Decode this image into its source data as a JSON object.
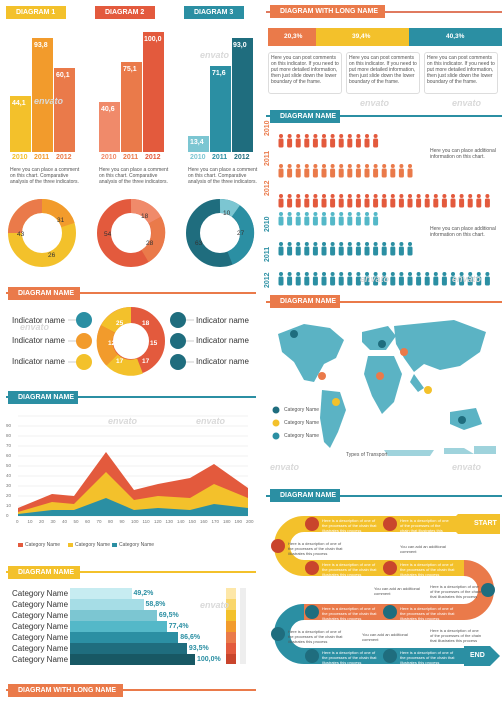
{
  "colors": {
    "orange": "#ea7a4a",
    "red": "#e35a3d",
    "yellow": "#f3c12b",
    "teal": "#2b8fa3",
    "darkteal": "#1f6d7e",
    "lightteal": "#54b8c8",
    "amber": "#f29b2c"
  },
  "top_charts": [
    {
      "title": "DIAGRAM 1",
      "values": [
        "44,1",
        "93,8",
        "60,1"
      ],
      "years": [
        "2010",
        "2011",
        "2012"
      ],
      "donut": [
        "43",
        "31",
        "26"
      ],
      "caption": "Here you can place a comment on this chart. Comparative analysis of the three indicators."
    },
    {
      "title": "DIAGRAM 2",
      "values": [
        "40,6",
        "75,1",
        "100,0"
      ],
      "years": [
        "2010",
        "2011",
        "2012"
      ],
      "donut": [
        "54",
        "18",
        "28"
      ],
      "caption": "Here you can place a comment on this chart. Comparative analysis of the three indicators."
    },
    {
      "title": "DIAGRAM 3",
      "values": [
        "13,4",
        "71,6",
        "93,0"
      ],
      "years": [
        "2010",
        "2011",
        "2012"
      ],
      "donut": [
        "63",
        "10",
        "27"
      ],
      "caption": "Here you can place a comment on this chart. Comparative analysis of the three indicators."
    }
  ],
  "long_diagram": {
    "title": "DIAGRAM WITH LONG NAME",
    "percents": [
      "20,3%",
      "39,4%",
      "40,3%"
    ],
    "comment": "Here you can post comments on this indicator. If you need to put more detailed information, then just slide down the lower boundary of the frame."
  },
  "people_diagram": {
    "title": "DIAGRAM NAME",
    "years": [
      "2010",
      "2011",
      "2012"
    ],
    "comment": "Here you can place additional information on this chart."
  },
  "indicator_diagram": {
    "title": "DIAGRAM NAME",
    "label": "Indicator name",
    "center_values": [
      "25",
      "18",
      "15",
      "17",
      "17",
      "12"
    ]
  },
  "world_map": {
    "title": "DIAGRAM NAME",
    "legend": [
      "Category Name",
      "Category Name",
      "Category Name"
    ],
    "transport": "Types of Transport"
  },
  "area_chart": {
    "title": "DIAGRAM NAME",
    "legend": [
      "Category Name",
      "Category Name",
      "Category Name"
    ],
    "yticks": [
      "0",
      "10",
      "20",
      "30",
      "40",
      "50",
      "60",
      "70",
      "80",
      "90"
    ],
    "xticks": [
      "0",
      "10",
      "20",
      "30",
      "40",
      "50",
      "60",
      "70",
      "80",
      "90",
      "100",
      "110",
      "120",
      "130",
      "140",
      "150",
      "160",
      "170",
      "180",
      "190",
      "200"
    ]
  },
  "stair_chart": {
    "title": "DIAGRAM NAME",
    "rows": [
      {
        "label": "Category Name",
        "value": "49,2%"
      },
      {
        "label": "Category Name",
        "value": "58,8%"
      },
      {
        "label": "Category Name",
        "value": "69,5%"
      },
      {
        "label": "Category Name",
        "value": "77,4%"
      },
      {
        "label": "Category Name",
        "value": "86,6%"
      },
      {
        "label": "Category Name",
        "value": "93,5%"
      },
      {
        "label": "Category Name",
        "value": "100,0%"
      }
    ]
  },
  "road_diagram": {
    "title": "DIAGRAM NAME",
    "start": "START",
    "end": "END",
    "step_text": "Here is a description of one of the processes of the chain that illustrates this process",
    "extra": "You can add an additional comment"
  },
  "bottom_ribbon": {
    "title": "DIAGRAM WITH LONG NAME"
  },
  "watermark": "envato"
}
